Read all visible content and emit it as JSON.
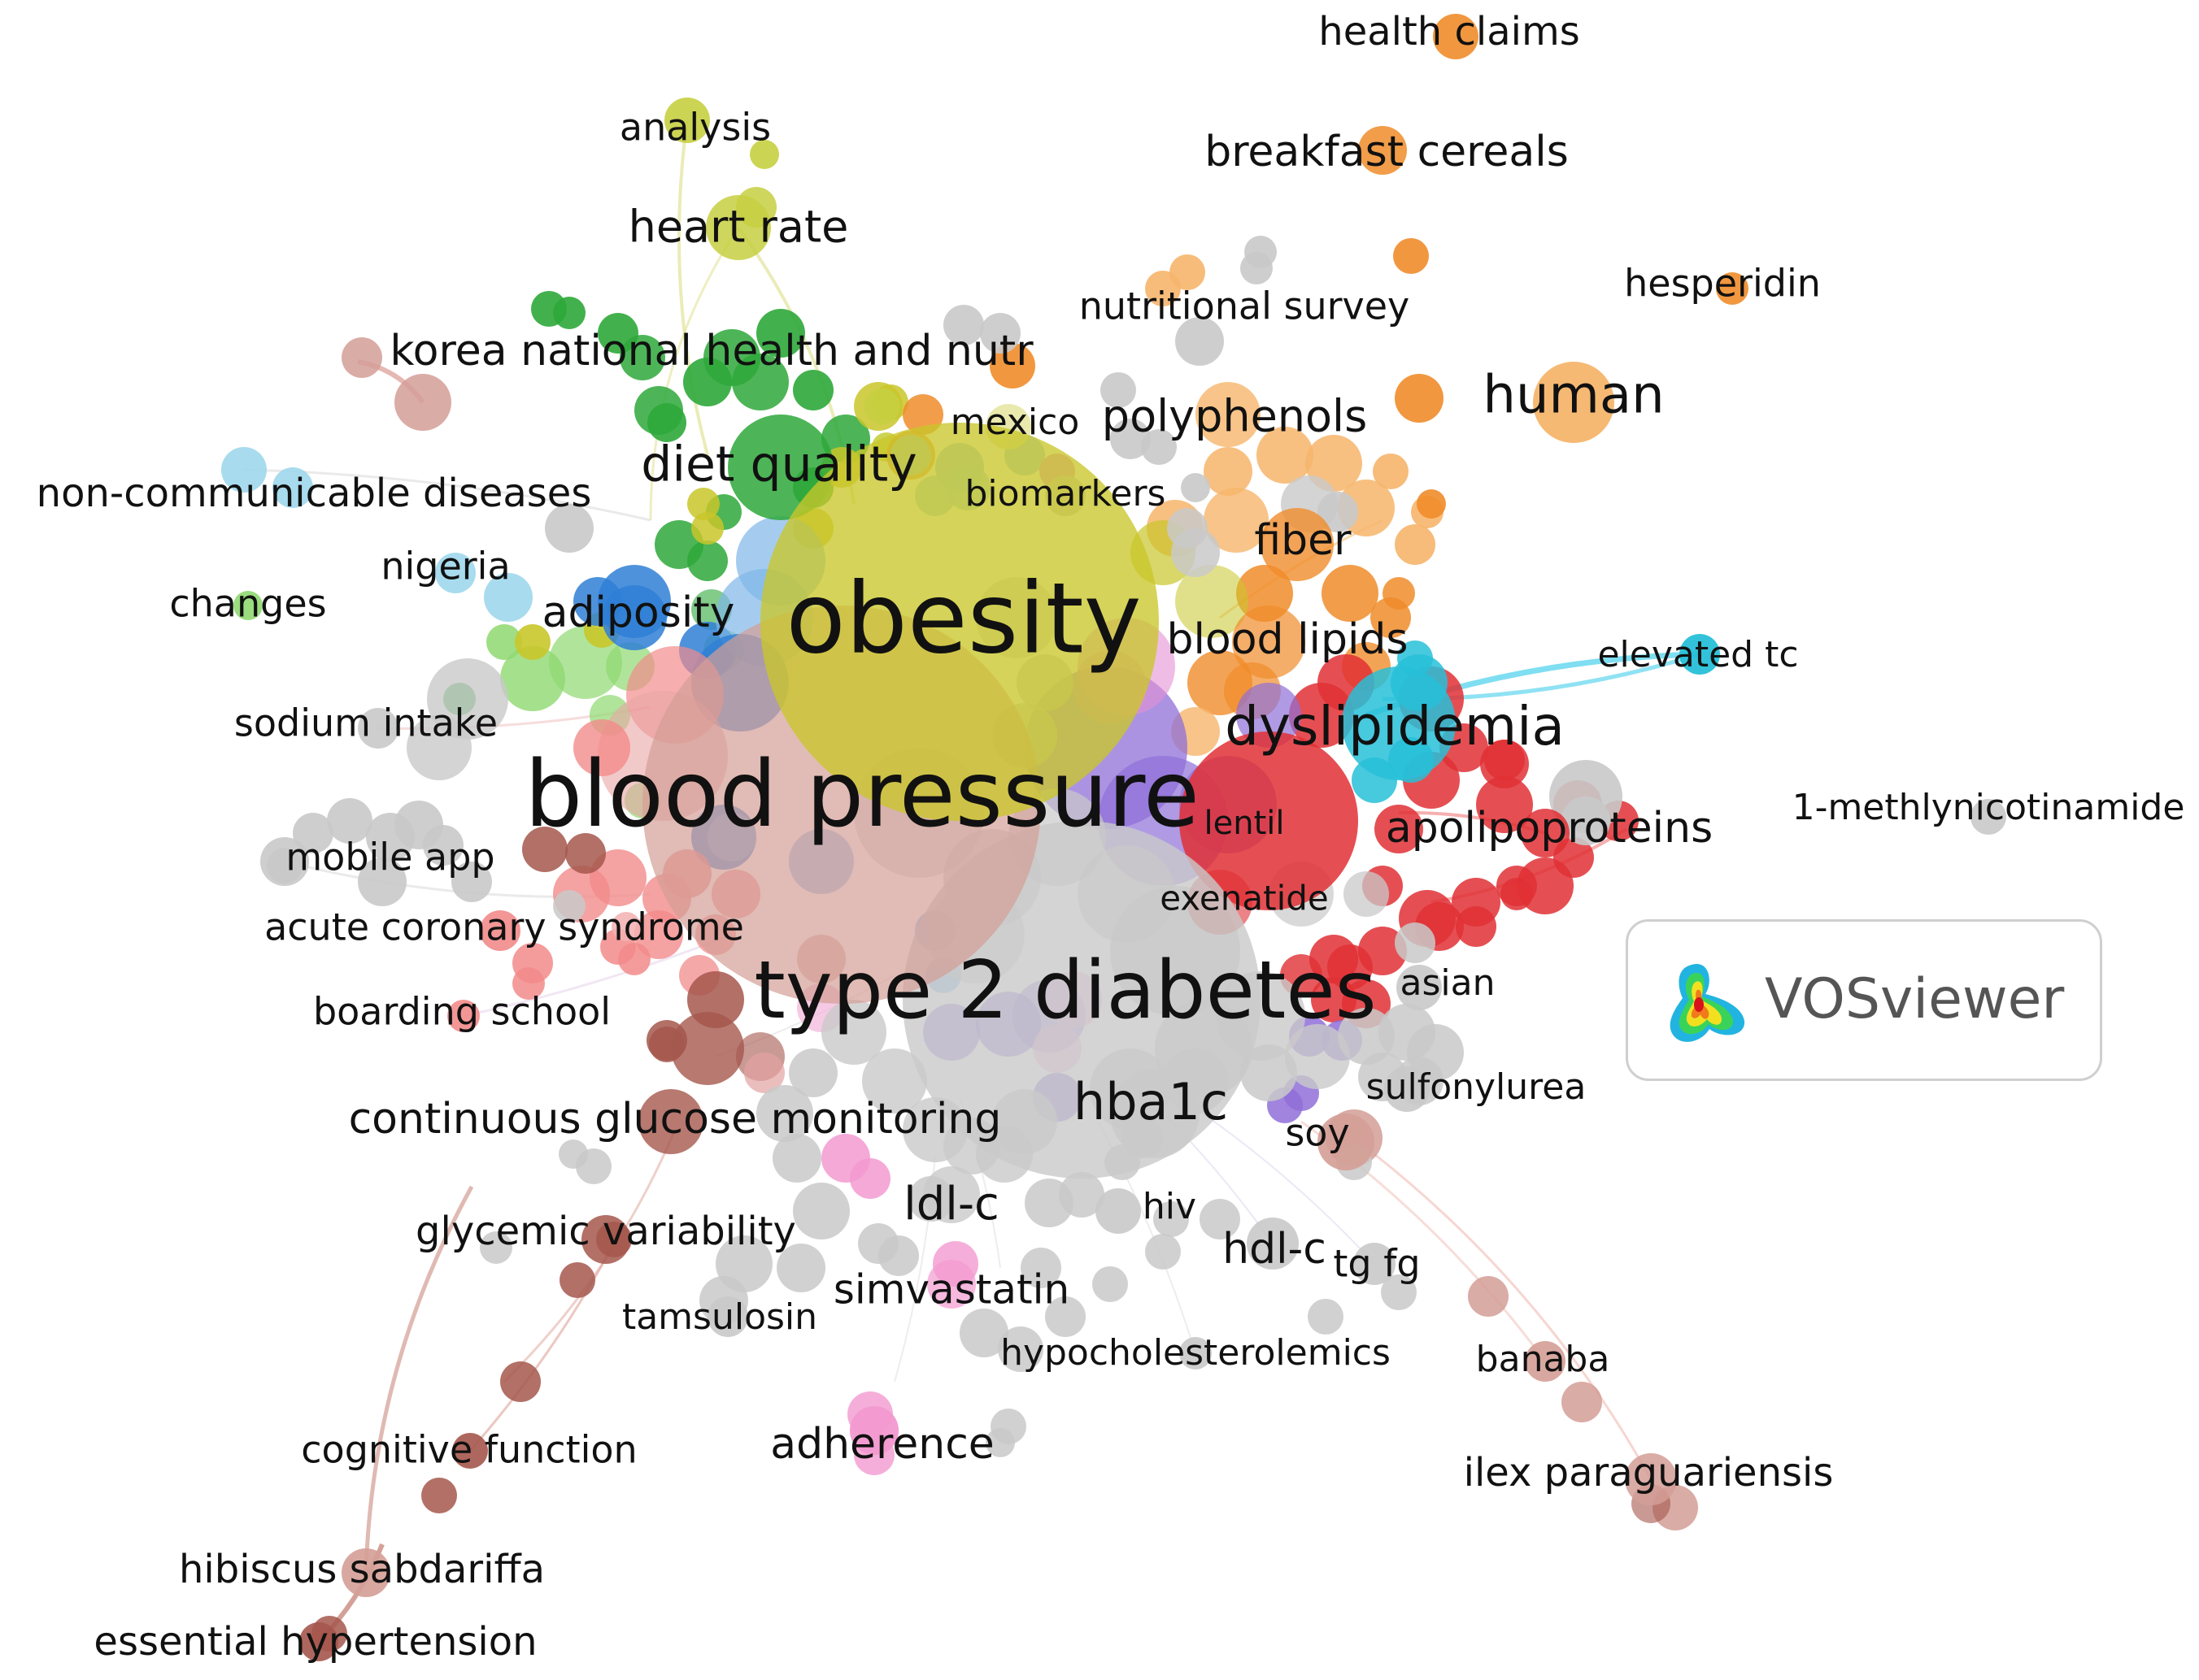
{
  "brand": {
    "name": "VOSviewer"
  },
  "colors": {
    "red": "#e03035",
    "green": "#2ea83a",
    "blue": "#2f7fd6",
    "yellow": "#c9c62a",
    "purple": "#8f6fd8",
    "cyan": "#27bfd8",
    "orange": "#f08c2a",
    "brown": "#a5574c",
    "pink": "#f39ad0",
    "lightgreen": "#8fd870",
    "gray": "#c9c9c9",
    "salmon": "#f28b8b",
    "lightblue": "#9fd7ec",
    "peach": "#f6b56b",
    "rosybrown": "#d49e96",
    "olive": "#c7cf41"
  },
  "keywords": [
    {
      "id": "obesity",
      "label": "obesity",
      "cluster": "yellow",
      "weight": 1.0
    },
    {
      "id": "blood-pressure",
      "label": "blood pressure",
      "cluster": "rosybrown",
      "weight": 0.95
    },
    {
      "id": "type-2-diabetes",
      "label": "type 2 diabetes",
      "cluster": "gray",
      "weight": 0.9
    },
    {
      "id": "dyslipidemia",
      "label": "dyslipidemia",
      "cluster": "cyan",
      "weight": 0.45
    },
    {
      "id": "diet-quality",
      "label": "diet quality",
      "cluster": "green",
      "weight": 0.3
    },
    {
      "id": "human",
      "label": "human",
      "cluster": "orange",
      "weight": 0.25
    },
    {
      "id": "hba1c",
      "label": "hba1c",
      "cluster": "gray",
      "weight": 0.3
    },
    {
      "id": "lentil",
      "label": "lentil",
      "cluster": "red",
      "weight": 0.5
    },
    {
      "id": "apolipoproteins",
      "label": "apolipoproteins",
      "cluster": "red",
      "weight": 0.2
    },
    {
      "id": "exenatide",
      "label": "exenatide",
      "cluster": "red",
      "weight": 0.2
    },
    {
      "id": "adiposity",
      "label": "adiposity",
      "cluster": "blue",
      "weight": 0.2
    },
    {
      "id": "blood-lipids",
      "label": "blood lipids",
      "cluster": "orange",
      "weight": 0.2
    },
    {
      "id": "fiber",
      "label": "fiber",
      "cluster": "orange",
      "weight": 0.2
    },
    {
      "id": "polyphenols",
      "label": "polyphenols",
      "cluster": "peach",
      "weight": 0.2
    },
    {
      "id": "continuous-glucose-monitoring",
      "label": "continuous glucose monitoring",
      "cluster": "brown",
      "weight": 0.2
    },
    {
      "id": "heart-rate",
      "label": "heart rate",
      "cluster": "olive",
      "weight": 0.15
    },
    {
      "id": "korea",
      "label": "korea national health and nutr",
      "cluster": "green",
      "weight": 0.2
    },
    {
      "id": "ldl-c",
      "label": "ldl-c",
      "cluster": "gray",
      "weight": 0.15
    },
    {
      "id": "hdl-c",
      "label": "hdl-c",
      "cluster": "gray",
      "weight": 0.15
    },
    {
      "id": "adherence",
      "label": "adherence",
      "cluster": "pink",
      "weight": 0.15
    },
    {
      "id": "simvastatin",
      "label": "simvastatin",
      "cluster": "pink",
      "weight": 0.15
    },
    {
      "id": "breakfast-cereals",
      "label": "breakfast cereals",
      "cluster": "orange",
      "weight": 0.1
    },
    {
      "id": "health-claims",
      "label": "health claims",
      "cluster": "orange",
      "weight": 0.1
    },
    {
      "id": "hesperidin",
      "label": "hesperidin",
      "cluster": "orange",
      "weight": 0.05
    },
    {
      "id": "nutritional-survey",
      "label": "nutritional survey",
      "cluster": "gray",
      "weight": 0.1
    },
    {
      "id": "mexico",
      "label": "mexico",
      "cluster": "gray",
      "weight": 0.1
    },
    {
      "id": "biomarkers",
      "label": "biomarkers",
      "cluster": "gray",
      "weight": 0.1
    },
    {
      "id": "analysis",
      "label": "analysis",
      "cluster": "olive",
      "weight": 0.05
    },
    {
      "id": "non-communicable-diseases",
      "label": "non-communicable diseases",
      "cluster": "lightblue",
      "weight": 0.1
    },
    {
      "id": "nigeria",
      "label": "nigeria",
      "cluster": "lightblue",
      "weight": 0.05
    },
    {
      "id": "changes",
      "label": "changes",
      "cluster": "lightgreen",
      "weight": 0.05
    },
    {
      "id": "sodium-intake",
      "label": "sodium intake",
      "cluster": "gray",
      "weight": 0.1
    },
    {
      "id": "mobile-app",
      "label": "mobile app",
      "cluster": "gray",
      "weight": 0.1
    },
    {
      "id": "acute-coronary-syndrome",
      "label": "acute coronary syndrome",
      "cluster": "salmon",
      "weight": 0.1
    },
    {
      "id": "boarding-school",
      "label": "boarding school",
      "cluster": "salmon",
      "weight": 0.05
    },
    {
      "id": "elevated-tc",
      "label": "elevated tc",
      "cluster": "cyan",
      "weight": 0.05
    },
    {
      "id": "1-methlynicotinamide",
      "label": "1-methlynicotinamide",
      "cluster": "gray",
      "weight": 0.05
    },
    {
      "id": "asian",
      "label": "asian",
      "cluster": "gray",
      "weight": 0.05
    },
    {
      "id": "sulfonylurea",
      "label": "sulfonylurea",
      "cluster": "gray",
      "weight": 0.05
    },
    {
      "id": "soy",
      "label": "soy",
      "cluster": "rosybrown",
      "weight": 0.1
    },
    {
      "id": "hiv",
      "label": "hiv",
      "cluster": "gray",
      "weight": 0.05
    },
    {
      "id": "tg-fg",
      "label": "tg fg",
      "cluster": "gray",
      "weight": 0.05
    },
    {
      "id": "glycemic-variability",
      "label": "glycemic variability",
      "cluster": "brown",
      "weight": 0.1
    },
    {
      "id": "tamsulosin",
      "label": "tamsulosin",
      "cluster": "gray",
      "weight": 0.05
    },
    {
      "id": "hypocholesterolemics",
      "label": "hypocholesterolemics",
      "cluster": "gray",
      "weight": 0.05
    },
    {
      "id": "banaba",
      "label": "banaba",
      "cluster": "rosybrown",
      "weight": 0.05
    },
    {
      "id": "ilex-paraguariensis",
      "label": "ilex paraguariensis",
      "cluster": "rosybrown",
      "weight": 0.1
    },
    {
      "id": "cognitive-function",
      "label": "cognitive function",
      "cluster": "brown",
      "weight": 0.05
    },
    {
      "id": "hibiscus-sabdariffa",
      "label": "hibiscus sabdariffa",
      "cluster": "rosybrown",
      "weight": 0.1
    },
    {
      "id": "essential-hypertension",
      "label": "essential hypertension",
      "cluster": "brown",
      "weight": 0.1
    }
  ]
}
